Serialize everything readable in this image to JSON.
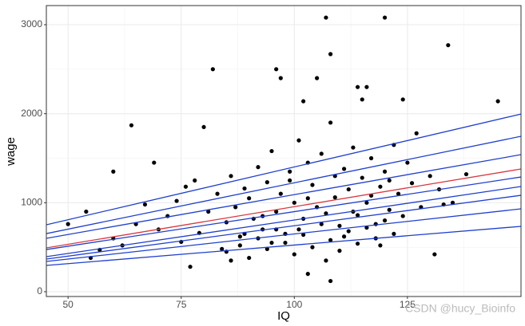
{
  "chart_data": {
    "type": "scatter-lines",
    "x_label": "IQ",
    "y_label": "wage",
    "watermark": "CSDN @hucy_Bioinfo",
    "xlim": [
      45.2,
      150.1
    ],
    "xticks": [
      50,
      75,
      100,
      125
    ],
    "minor_xticks": [
      62.5,
      87.5,
      112.5,
      137.5
    ],
    "ylim": [
      -54,
      3215
    ],
    "yticks": [
      0,
      1000,
      2000,
      3000
    ],
    "minor_yticks": [
      500,
      1500,
      2500
    ],
    "grid": true,
    "point_color": "#000000",
    "x": [
      50,
      54,
      60,
      64,
      69,
      80,
      82,
      96,
      97,
      107,
      108,
      120,
      134,
      145,
      105,
      102,
      114,
      116,
      115,
      124,
      108,
      103,
      77,
      131,
      57,
      55,
      60,
      62,
      65,
      67,
      70,
      72,
      74,
      75,
      76,
      78,
      79,
      81,
      83,
      84,
      85,
      86,
      87,
      88,
      89,
      90,
      91,
      92,
      93,
      94,
      95,
      96,
      97,
      98,
      99,
      100,
      101,
      102,
      103,
      104,
      105,
      106,
      107,
      108,
      109,
      110,
      111,
      112,
      113,
      114,
      115,
      116,
      117,
      118,
      119,
      120,
      121,
      122,
      123,
      124,
      125,
      126,
      127,
      128,
      130,
      132,
      133,
      135,
      138,
      85,
      88,
      90,
      92,
      94,
      96,
      98,
      100,
      102,
      104,
      106,
      108,
      110,
      112,
      114,
      116,
      118,
      120,
      122,
      86,
      89,
      93,
      95,
      99,
      101,
      103,
      107,
      109,
      111,
      113,
      117,
      119,
      121
    ],
    "y": [
      760,
      900,
      1350,
      1870,
      1450,
      1850,
      2500,
      2500,
      2400,
      3080,
      2670,
      3080,
      2770,
      2140,
      2400,
      2140,
      2300,
      2300,
      2160,
      2160,
      120,
      200,
      280,
      420,
      470,
      380,
      600,
      520,
      760,
      980,
      700,
      850,
      1020,
      560,
      1180,
      1250,
      660,
      900,
      1100,
      480,
      780,
      1300,
      950,
      620,
      1160,
      1050,
      820,
      1400,
      700,
      1230,
      1580,
      900,
      1100,
      650,
      1350,
      1000,
      1700,
      820,
      1450,
      1200,
      950,
      1550,
      880,
      1900,
      1060,
      740,
      1380,
      1150,
      1620,
      860,
      1280,
      1000,
      1500,
      760,
      1180,
      1350,
      920,
      1650,
      1100,
      850,
      1450,
      1220,
      1780,
      950,
      1300,
      1150,
      980,
      1000,
      1320,
      450,
      520,
      380,
      600,
      480,
      700,
      550,
      420,
      640,
      500,
      760,
      580,
      460,
      680,
      540,
      720,
      600,
      800,
      650,
      350,
      650,
      850,
      550,
      1250,
      700,
      1050,
      350,
      1300,
      620,
      900,
      1080,
      520,
      1250
    ],
    "lines": [
      {
        "color": "#1f3fcf",
        "x": [
          45.2,
          150.1
        ],
        "values": [
          752,
          1996
        ]
      },
      {
        "color": "#1f3fcf",
        "x": [
          45.2,
          150.1
        ],
        "values": [
          653,
          1746
        ]
      },
      {
        "color": "#1f3fcf",
        "x": [
          45.2,
          150.1
        ],
        "values": [
          600,
          1540
        ]
      },
      {
        "color": "#d9363e",
        "x": [
          45.2,
          150.1
        ],
        "values": [
          492,
          1379
        ]
      },
      {
        "color": "#1f3fcf",
        "x": [
          45.2,
          150.1
        ],
        "values": [
          474,
          1289
        ]
      },
      {
        "color": "#1f3fcf",
        "x": [
          45.2,
          150.1
        ],
        "values": [
          394,
          1182
        ]
      },
      {
        "color": "#1f3fcf",
        "x": [
          45.2,
          150.1
        ],
        "values": [
          367,
          1083
        ]
      },
      {
        "color": "#1f3fcf",
        "x": [
          45.2,
          150.1
        ],
        "values": [
          340,
          931
        ]
      },
      {
        "color": "#1f3fcf",
        "x": [
          45.2,
          150.1
        ],
        "values": [
          295,
          734
        ]
      }
    ]
  }
}
